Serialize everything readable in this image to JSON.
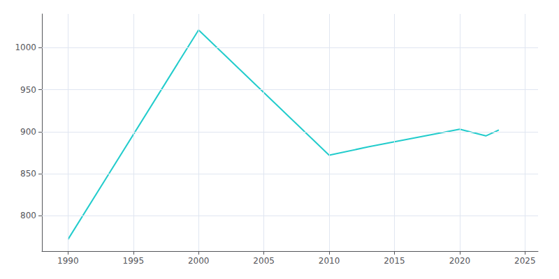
{
  "chart_data": {
    "type": "line",
    "x": [
      1990,
      2000,
      2010,
      2013,
      2020,
      2022,
      2023
    ],
    "values": [
      772,
      1021,
      872,
      882,
      903,
      895,
      902
    ],
    "color": "#22CCCC",
    "xlim": [
      1988,
      2026
    ],
    "ylim": [
      758,
      1040
    ],
    "xticks": [
      1990,
      1995,
      2000,
      2005,
      2010,
      2015,
      2020,
      2025
    ],
    "yticks": [
      800,
      850,
      900,
      950,
      1000
    ],
    "grid": true
  }
}
